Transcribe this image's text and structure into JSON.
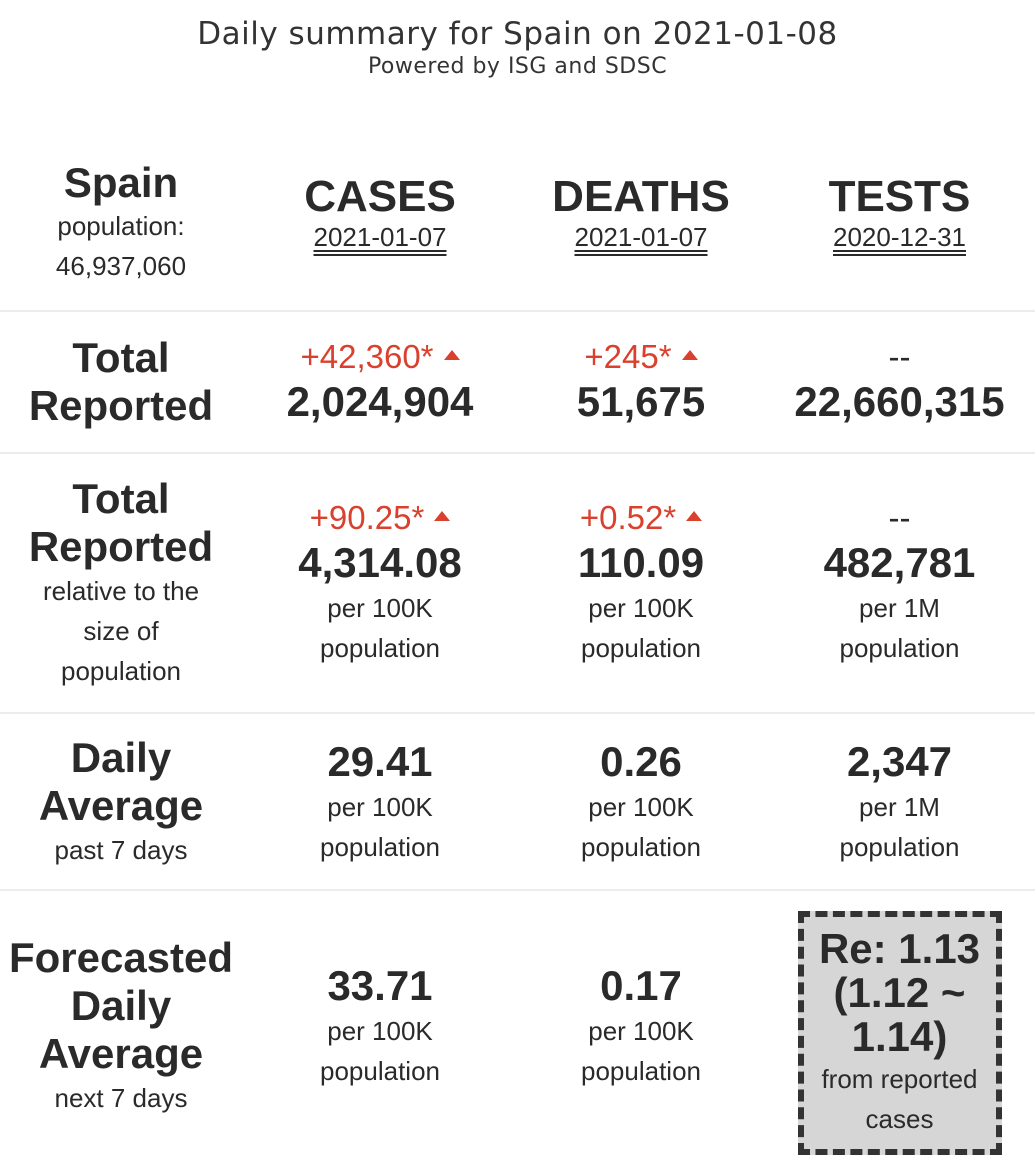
{
  "header": {
    "title": "Daily summary for Spain on 2021-01-08",
    "subtitle": "Powered by ISG and SDSC"
  },
  "country": {
    "name": "Spain",
    "population_label": "population:",
    "population": "46,937,060"
  },
  "columns": [
    {
      "title": "CASES",
      "date": "2021-01-07"
    },
    {
      "title": "DEATHS",
      "date": "2021-01-07"
    },
    {
      "title": "TESTS",
      "date": "2020-12-31"
    }
  ],
  "rows": {
    "total_reported": {
      "label_line1": "Total",
      "label_line2": "Reported",
      "cases": {
        "delta": "+42,360*",
        "value": "2,024,904"
      },
      "deaths": {
        "delta": "+245*",
        "value": "51,675"
      },
      "tests": {
        "delta": "--",
        "value": "22,660,315"
      }
    },
    "relative": {
      "label_line1": "Total",
      "label_line2": "Reported",
      "sub1": "relative to the",
      "sub2": "size of",
      "sub3": "population",
      "cases": {
        "delta": "+90.25*",
        "value": "4,314.08",
        "unit1": "per 100K",
        "unit2": "population"
      },
      "deaths": {
        "delta": "+0.52*",
        "value": "110.09",
        "unit1": "per 100K",
        "unit2": "population"
      },
      "tests": {
        "delta": "--",
        "value": "482,781",
        "unit1": "per 1M",
        "unit2": "population"
      }
    },
    "daily_average": {
      "label_line1": "Daily",
      "label_line2": "Average",
      "sub": "past 7 days",
      "cases": {
        "value": "29.41",
        "unit1": "per 100K",
        "unit2": "population"
      },
      "deaths": {
        "value": "0.26",
        "unit1": "per 100K",
        "unit2": "population"
      },
      "tests": {
        "value": "2,347",
        "unit1": "per 1M",
        "unit2": "population"
      }
    },
    "forecast": {
      "label_line1": "Forecasted",
      "label_line2": "Daily",
      "label_line3": "Average",
      "sub": "next 7 days",
      "cases": {
        "value": "33.71",
        "unit1": "per 100K",
        "unit2": "population"
      },
      "deaths": {
        "value": "0.17",
        "unit1": "per 100K",
        "unit2": "population"
      },
      "re": {
        "line1": "Re: 1.13",
        "line2": "(1.12 ~",
        "line3": "1.14)",
        "note1": "from reported",
        "note2": "cases"
      }
    }
  },
  "colors": {
    "increase": "#d9412e",
    "text": "#2a2a2a",
    "re_box_bg": "#d6d6d6"
  }
}
